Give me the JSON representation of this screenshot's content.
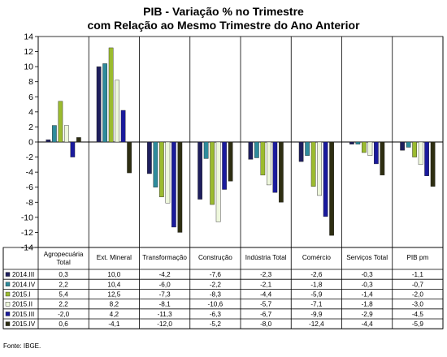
{
  "chart_data": {
    "type": "bar",
    "title": "PIB - Variação % no Trimestre",
    "subtitle": "com Relação ao Mesmo Trimestre do Ano Anterior",
    "xlabel": "",
    "ylabel": "",
    "ylim": [
      -14,
      14
    ],
    "ytick_step": 2,
    "grid": false,
    "categories": [
      "Agropecuária Total",
      "Ext. Mineral",
      "Transformação",
      "Construção",
      "Indústria Total",
      "Comércio",
      "Serviços Total",
      "PIB pm"
    ],
    "series": [
      {
        "name": "2014.III",
        "color": "#1f1f5e",
        "values": [
          0.3,
          10.0,
          -4.2,
          -7.6,
          -2.3,
          -2.6,
          -0.3,
          -1.1
        ],
        "labels": [
          "0,3",
          "10,0",
          "-4,2",
          "-7,6",
          "-2,3",
          "-2,6",
          "-0,3",
          "-1,1"
        ]
      },
      {
        "name": "2014.IV",
        "color": "#2e8b9c",
        "values": [
          2.2,
          10.4,
          -6.0,
          -2.2,
          -2.1,
          -1.8,
          -0.3,
          -0.7
        ],
        "labels": [
          "2,2",
          "10,4",
          "-6,0",
          "-2,2",
          "-2,1",
          "-1,8",
          "-0,3",
          "-0,7"
        ]
      },
      {
        "name": "2015.I",
        "color": "#9bbb2f",
        "values": [
          5.4,
          12.5,
          -7.3,
          -8.3,
          -4.4,
          -5.9,
          -1.4,
          -2.0
        ],
        "labels": [
          "5,4",
          "12,5",
          "-7,3",
          "-8,3",
          "-4,4",
          "-5,9",
          "-1,4",
          "-2,0"
        ]
      },
      {
        "name": "2015.II",
        "color": "#eef7dc",
        "values": [
          2.2,
          8.2,
          -8.1,
          -10.6,
          -5.7,
          -7.1,
          -1.8,
          -3.0
        ],
        "labels": [
          "2,2",
          "8,2",
          "-8,1",
          "-10,6",
          "-5,7",
          "-7,1",
          "-1,8",
          "-3,0"
        ]
      },
      {
        "name": "2015.III",
        "color": "#1a1a9c",
        "values": [
          -2.0,
          4.2,
          -11.3,
          -6.3,
          -6.7,
          -9.9,
          -2.9,
          -4.5
        ],
        "labels": [
          "-2,0",
          "4,2",
          "-11,3",
          "-6,3",
          "-6,7",
          "-9,9",
          "-2,9",
          "-4,5"
        ]
      },
      {
        "name": "2015.IV",
        "color": "#2e2e12",
        "values": [
          0.6,
          -4.1,
          -12.0,
          -5.2,
          -8.0,
          -12.4,
          -4.4,
          -5.9
        ],
        "labels": [
          "0,6",
          "-4,1",
          "-12,0",
          "-5,2",
          "-8,0",
          "-12,4",
          "-4,4",
          "-5,9"
        ]
      }
    ],
    "legend_placement": "table-left",
    "source": "Fonte: IBGE."
  }
}
